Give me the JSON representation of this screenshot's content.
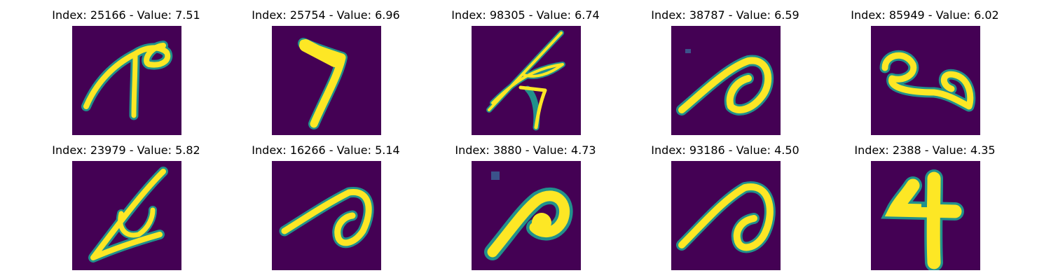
{
  "panels": [
    {
      "title": "Index: 25166 - Value: 7.51",
      "image": "handwritten-digit-7-variant"
    },
    {
      "title": "Index: 25754 - Value: 6.96",
      "image": "handwritten-digit-7"
    },
    {
      "title": "Index: 98305 - Value: 6.74",
      "image": "handwritten-scribble-crossed"
    },
    {
      "title": "Index: 38787 - Value: 6.59",
      "image": "handwritten-loop-stroke"
    },
    {
      "title": "Index: 85949 - Value: 6.02",
      "image": "handwritten-loops-horizontal"
    },
    {
      "title": "Index: 23979 - Value: 5.82",
      "image": "handwritten-slanted-loop"
    },
    {
      "title": "Index: 16266 - Value: 5.14",
      "image": "handwritten-loop-stroke"
    },
    {
      "title": "Index: 3880 - Value: 4.73",
      "image": "handwritten-blob-loop"
    },
    {
      "title": "Index: 93186 - Value: 4.50",
      "image": "handwritten-loop-stroke"
    },
    {
      "title": "Index: 2388 - Value: 4.35",
      "image": "handwritten-digit-4"
    }
  ],
  "colors": {
    "background": "#440154",
    "stroke": "#fde725",
    "edge": "#21918c",
    "edge_mid": "#5ec962"
  }
}
